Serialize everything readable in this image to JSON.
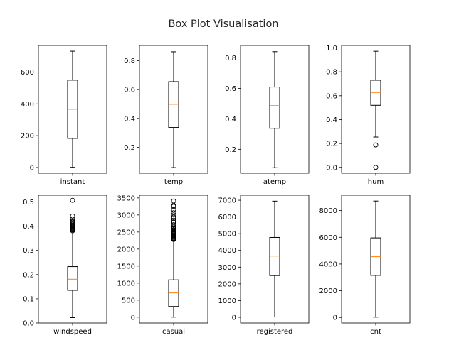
{
  "figure": {
    "title": "Box Plot Visualisation"
  },
  "style": {
    "box_color": "#000000",
    "median_color": "#ff7f0e",
    "flier_color": "#000000"
  },
  "chart_data": [
    {
      "type": "box",
      "xlabel": "instant",
      "ylim": [
        -36,
        767
      ],
      "yticks": [
        0,
        200,
        400,
        600
      ],
      "ytick_labels": [
        "0",
        "200",
        "400",
        "600"
      ],
      "whisker_low": 1,
      "q1": 183,
      "median": 366,
      "q3": 549,
      "whisker_high": 731,
      "outliers": []
    },
    {
      "type": "box",
      "xlabel": "temp",
      "ylim": [
        0.02,
        0.906
      ],
      "yticks": [
        0.2,
        0.4,
        0.6,
        0.8
      ],
      "ytick_labels": [
        "0.2",
        "0.4",
        "0.6",
        "0.8"
      ],
      "whisker_low": 0.059,
      "q1": 0.337,
      "median": 0.498,
      "q3": 0.655,
      "whisker_high": 0.862,
      "outliers": []
    },
    {
      "type": "box",
      "xlabel": "atemp",
      "ylim": [
        0.043,
        0.882
      ],
      "yticks": [
        0.2,
        0.4,
        0.6,
        0.8
      ],
      "ytick_labels": [
        "0.2",
        "0.4",
        "0.6",
        "0.8"
      ],
      "whisker_low": 0.079,
      "q1": 0.338,
      "median": 0.487,
      "q3": 0.609,
      "whisker_high": 0.841,
      "outliers": []
    },
    {
      "type": "box",
      "xlabel": "hum",
      "ylim": [
        -0.049,
        1.021
      ],
      "yticks": [
        0,
        0.2,
        0.4,
        0.6,
        0.8,
        1.0
      ],
      "ytick_labels": [
        "0.0",
        "0.2",
        "0.4",
        "0.6",
        "0.8",
        "1.0"
      ],
      "whisker_low": 0.254,
      "q1": 0.52,
      "median": 0.627,
      "q3": 0.73,
      "whisker_high": 0.9725,
      "outliers": [
        0.0,
        0.188
      ]
    },
    {
      "type": "box",
      "xlabel": "windspeed",
      "ylim": [
        0.0,
        0.528
      ],
      "yticks": [
        0,
        0.1,
        0.2,
        0.3,
        0.4,
        0.5
      ],
      "ytick_labels": [
        "0.0",
        "0.1",
        "0.2",
        "0.3",
        "0.4",
        "0.5"
      ],
      "whisker_low": 0.022,
      "q1": 0.135,
      "median": 0.181,
      "q3": 0.233,
      "whisker_high": 0.378,
      "outliers": [
        0.381,
        0.385,
        0.388,
        0.39,
        0.393,
        0.396,
        0.399,
        0.402,
        0.405,
        0.409,
        0.414,
        0.418,
        0.422,
        0.43,
        0.442,
        0.507
      ]
    },
    {
      "type": "box",
      "xlabel": "casual",
      "ylim": [
        -170,
        3580
      ],
      "yticks": [
        0,
        500,
        1000,
        1500,
        2000,
        2500,
        3000,
        3500
      ],
      "ytick_labels": [
        "0",
        "500",
        "1000",
        "1500",
        "2000",
        "2500",
        "3000",
        "3500"
      ],
      "whisker_low": 2,
      "q1": 315,
      "median": 713,
      "q3": 1096,
      "whisker_high": 2258,
      "outliers": [
        2282,
        2301,
        2326,
        2352,
        2355,
        2376,
        2397,
        2418,
        2454,
        2469,
        2496,
        2512,
        2540,
        2562,
        2598,
        2622,
        2660,
        2704,
        2740,
        2795,
        2846,
        2898,
        2935,
        3004,
        3065,
        3155,
        3252,
        3283,
        3410
      ]
    },
    {
      "type": "box",
      "xlabel": "registered",
      "ylim": [
        -340,
        7300
      ],
      "yticks": [
        0,
        1000,
        2000,
        3000,
        4000,
        5000,
        6000,
        7000
      ],
      "ytick_labels": [
        "0",
        "1000",
        "2000",
        "3000",
        "4000",
        "5000",
        "6000",
        "7000"
      ],
      "whisker_low": 20,
      "q1": 2497,
      "median": 3662,
      "q3": 4776,
      "whisker_high": 6946,
      "outliers": []
    },
    {
      "type": "box",
      "xlabel": "cnt",
      "ylim": [
        -414,
        9150
      ],
      "yticks": [
        0,
        2000,
        4000,
        6000,
        8000
      ],
      "ytick_labels": [
        "0",
        "2000",
        "4000",
        "6000",
        "8000"
      ],
      "whisker_low": 22,
      "q1": 3152,
      "median": 4548,
      "q3": 5956,
      "whisker_high": 8714,
      "outliers": []
    }
  ]
}
